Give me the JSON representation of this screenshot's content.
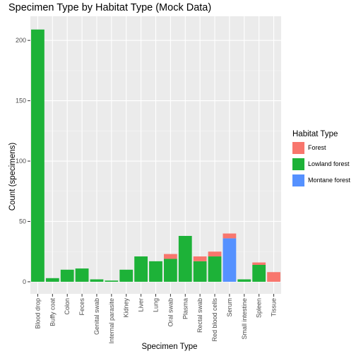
{
  "chart_data": {
    "type": "bar",
    "stacked": true,
    "title": "Specimen Type by Habitat Type (Mock Data)",
    "xlabel": "Specimen Type",
    "ylabel": "Count (specimens)",
    "ylim": [
      0,
      210
    ],
    "yticks": [
      0,
      50,
      100,
      150,
      200
    ],
    "grid": true,
    "legend": {
      "title": "Habitat Type",
      "position": "right"
    },
    "categories": [
      "Blood drop",
      "Buffy coat",
      "Colon",
      "Feces",
      "Genital swab",
      "Internal parasite",
      "Kidney",
      "Liver",
      "Lung",
      "Oral swab",
      "Plasma",
      "Rectal swab",
      "Red blood cells",
      "Serum",
      "Small intestine",
      "Spleen",
      "Tissue"
    ],
    "series": [
      {
        "name": "Forest",
        "color": "#F8766D",
        "values": [
          0,
          0,
          0,
          0,
          0,
          0,
          0,
          0,
          0,
          4,
          0,
          4,
          4,
          4,
          0,
          2,
          8
        ]
      },
      {
        "name": "Lowland forest",
        "color": "#1DB238",
        "values": [
          209,
          3,
          10,
          11,
          2,
          1,
          10,
          21,
          17,
          19,
          38,
          17,
          21,
          0,
          2,
          14,
          0
        ]
      },
      {
        "name": "Montane forest",
        "color": "#5591FF",
        "values": [
          0,
          0,
          0,
          0,
          0,
          0,
          0,
          0,
          0,
          0,
          0,
          0,
          0,
          36,
          0,
          0,
          0
        ]
      }
    ]
  }
}
